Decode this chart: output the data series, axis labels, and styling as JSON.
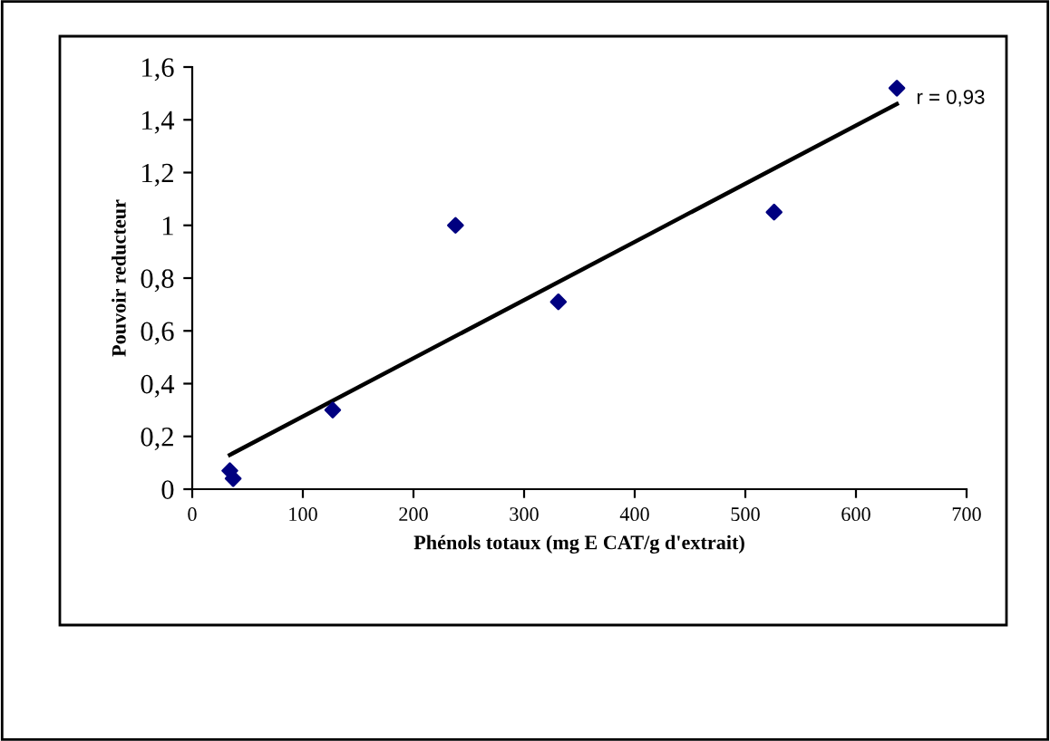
{
  "chart_data": {
    "type": "scatter",
    "xlabel": "Phénols totaux (mg E CAT/g d'extrait)",
    "ylabel": "Pouvoir reducteur",
    "series": [
      {
        "color": "#000080",
        "marker": "diamond",
        "x": [
          34,
          37,
          127,
          238,
          331,
          526,
          637
        ],
        "values": [
          0.07,
          0.04,
          0.3,
          1.0,
          0.71,
          1.05,
          1.52
        ]
      },
      {
        "type": "line",
        "color": "#000000",
        "marker": "none",
        "line_style": "solid",
        "x": [
          34,
          637
        ],
        "values": [
          0.13,
          1.46
        ]
      }
    ],
    "annotations": [
      "r = 0,93"
    ],
    "xlim": [
      0,
      700
    ],
    "xticks": [
      0,
      100,
      200,
      300,
      400,
      500,
      600,
      700
    ],
    "ylim": [
      0,
      1.6
    ],
    "yticks": [
      0,
      {
        "value": 0.2,
        "label": "0,2"
      },
      {
        "value": 0.4,
        "label": "0,4"
      },
      {
        "value": 0.6,
        "label": "0,6"
      },
      {
        "value": 0.8,
        "label": "0,8"
      },
      1,
      {
        "value": 1.2,
        "label": "1,2"
      },
      {
        "value": 1.4,
        "label": "1,4"
      },
      {
        "value": 1.6,
        "label": "1,6"
      }
    ],
    "grid": false,
    "legend": false
  }
}
